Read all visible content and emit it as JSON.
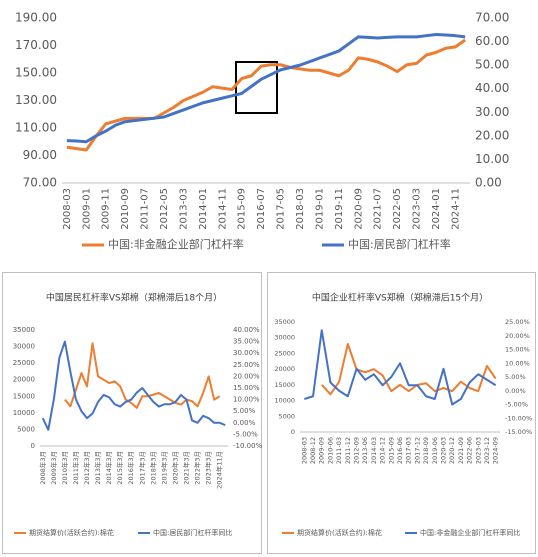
{
  "chart_data": [
    {
      "type": "line",
      "categories": [
        "2008-03",
        null,
        "2009-01",
        null,
        "2009-11",
        null,
        "2010-09",
        null,
        "2011-07",
        null,
        "2012-05",
        null,
        "2013-03",
        null,
        "2014-01",
        null,
        "2014-11",
        null,
        "2015-09",
        null,
        "2016-07",
        null,
        "2017-05",
        null,
        "2018-03",
        null,
        "2019-01",
        null,
        "2019-11",
        null,
        "2020-09",
        null,
        "2021-07",
        null,
        "2022-05",
        null,
        "2023-03",
        null,
        "2024-01",
        null,
        "2024-11",
        null
      ],
      "series": [
        {
          "name": "中国:非金融企业部门杠杆率",
          "color": "#ED7D31",
          "values": [
            96,
            95,
            94,
            104,
            113,
            115,
            117,
            117,
            117,
            117,
            121,
            125,
            130,
            133,
            136,
            140,
            139,
            138,
            146,
            148,
            155,
            156,
            156,
            154,
            153,
            152,
            152,
            150,
            148,
            152,
            161,
            160,
            158,
            155,
            151,
            156,
            157,
            163,
            165,
            168,
            169,
            174
          ]
        },
        {
          "name": "中国:居民部门杠杆率",
          "color": "#4472C4",
          "axis": "y2",
          "values": [
            18,
            17.8,
            17.5,
            20,
            22,
            24.5,
            26,
            26.5,
            27,
            27.5,
            28,
            29.5,
            31,
            32.5,
            34,
            35,
            36,
            37,
            38,
            41,
            44,
            46,
            48,
            49,
            50,
            51.5,
            53,
            54.5,
            56,
            59,
            62,
            61.8,
            61.5,
            61.8,
            62,
            62,
            62,
            62.5,
            63,
            62.8,
            62.5,
            62
          ]
        }
      ],
      "ylim": [
        70,
        190
      ],
      "yticks": [
        {
          "value": 70,
          "label": "70.00"
        },
        {
          "value": 90,
          "label": "90.00"
        },
        {
          "value": 110,
          "label": "110.00"
        },
        {
          "value": 130,
          "label": "130.00"
        },
        {
          "value": 150,
          "label": "150.00"
        },
        {
          "value": 170,
          "label": "170.00"
        },
        {
          "value": 190,
          "label": "190.00"
        }
      ],
      "y2lim": [
        0,
        70
      ],
      "y2ticks": [
        {
          "value": 0,
          "label": "0.00"
        },
        {
          "value": 10,
          "label": "10.00"
        },
        {
          "value": 20,
          "label": "20.00"
        },
        {
          "value": 30,
          "label": "30.00"
        },
        {
          "value": 40,
          "label": "40.00"
        },
        {
          "value": 50,
          "label": "50.00"
        },
        {
          "value": 60,
          "label": "60.00"
        },
        {
          "value": 70,
          "label": "70.00"
        }
      ],
      "grid": false
    },
    {
      "type": "line",
      "title": "中国居民杠杆率VS郑棉（郑棉滞后18个月）",
      "categories": [
        "2008年3月",
        null,
        "2009年3月",
        null,
        "2010年3月",
        null,
        "2011年3月",
        null,
        "2012年3月",
        null,
        "2013年3月",
        null,
        "2014年3月",
        null,
        "2015年3月",
        null,
        "2016年3月",
        null,
        "2017年3月",
        null,
        "2018年3月",
        null,
        "2019年3月",
        null,
        "2020年3月",
        null,
        "2021年3月",
        null,
        "2022年3月",
        null,
        "2023年3月",
        null,
        "2024年11月",
        null
      ],
      "series": [
        {
          "name": "期货结算价(活跃合约):棉花",
          "color": "#ED7D31",
          "values": [
            null,
            null,
            null,
            null,
            14000,
            12000,
            17000,
            22000,
            18000,
            31000,
            21000,
            20000,
            19000,
            19500,
            18000,
            14000,
            13000,
            11500,
            15000,
            15000,
            15500,
            16000,
            15000,
            14000,
            13000,
            12500,
            14000,
            13500,
            12000,
            16000,
            21000,
            14000,
            15000,
            null
          ]
        },
        {
          "name": "中国:居民部门杠杆率同比",
          "color": "#4472C4",
          "axis": "y2",
          "values": [
            2,
            -3,
            10,
            28,
            35,
            22,
            10,
            5,
            2,
            4,
            9,
            12,
            11,
            8,
            7,
            9,
            10,
            13,
            15,
            12,
            9,
            7,
            8,
            8,
            9,
            12,
            10,
            1,
            0,
            3,
            2,
            0,
            0,
            -1
          ]
        }
      ],
      "ylim": [
        0,
        35000
      ],
      "yticks": [
        0,
        5000,
        10000,
        15000,
        20000,
        25000,
        30000,
        35000
      ],
      "y2lim": [
        -10,
        40
      ],
      "y2ticks": [
        {
          "value": -10,
          "label": "-10.00%"
        },
        {
          "value": -5,
          "label": "-5.00%"
        },
        {
          "value": 0,
          "label": "0.00%"
        },
        {
          "value": 5,
          "label": "5.00%"
        },
        {
          "value": 10,
          "label": "10.00%"
        },
        {
          "value": 15,
          "label": "15.00%"
        },
        {
          "value": 20,
          "label": "20.00%"
        },
        {
          "value": 25,
          "label": "25.00%"
        },
        {
          "value": 30,
          "label": "30.00%"
        },
        {
          "value": 35,
          "label": "35.00%"
        },
        {
          "value": 40,
          "label": "40.00%"
        }
      ],
      "grid": false
    },
    {
      "type": "line",
      "title": "中国企业杠杆率VS郑棉（郑棉滞后15个月）",
      "categories": [
        "2008-03",
        "2008-12",
        "2009-09",
        "2010-06",
        "2011-03",
        "2011-12",
        "2012-09",
        "2013-06",
        "2014-03",
        "2014-12",
        "2015-09",
        "2016-06",
        "2017-03",
        "2017-12",
        "2018-09",
        "2019-06",
        "2020-03",
        "2020-12",
        "2021-09",
        "2022-06",
        "2023-03",
        "2023-12",
        "2024-09"
      ],
      "series": [
        {
          "name": "期货结算价(活跃合约):棉花",
          "color": "#ED7D31",
          "values": [
            null,
            null,
            15000,
            12000,
            16000,
            28000,
            20000,
            19000,
            20000,
            18000,
            13000,
            15000,
            13000,
            15000,
            15500,
            13000,
            14000,
            13000,
            16000,
            14000,
            13000,
            21000,
            17000
          ]
        },
        {
          "name": "中国:非金融企业部门杠杆率同比",
          "color": "#4472C4",
          "axis": "y2",
          "values": [
            -3,
            -2,
            22,
            3,
            0,
            -2,
            8,
            4,
            6,
            2,
            5,
            10,
            2,
            2,
            -2,
            -3,
            8,
            -5,
            -3,
            3,
            6,
            4,
            2
          ]
        }
      ],
      "ylim": [
        0,
        35000
      ],
      "yticks": [
        0,
        5000,
        10000,
        15000,
        20000,
        25000,
        30000,
        35000
      ],
      "y2lim": [
        -15,
        25
      ],
      "y2ticks": [
        {
          "value": -15,
          "label": "-15.00%"
        },
        {
          "value": -10,
          "label": "-10.00%"
        },
        {
          "value": -5,
          "label": "-5.00%"
        },
        {
          "value": 0,
          "label": "0.00%"
        },
        {
          "value": 5,
          "label": "5.00%"
        },
        {
          "value": 10,
          "label": "10.00%"
        },
        {
          "value": 15,
          "label": "15.00%"
        },
        {
          "value": 20,
          "label": "20.00%"
        },
        {
          "value": 25,
          "label": "25.00%"
        }
      ],
      "grid": false
    }
  ]
}
